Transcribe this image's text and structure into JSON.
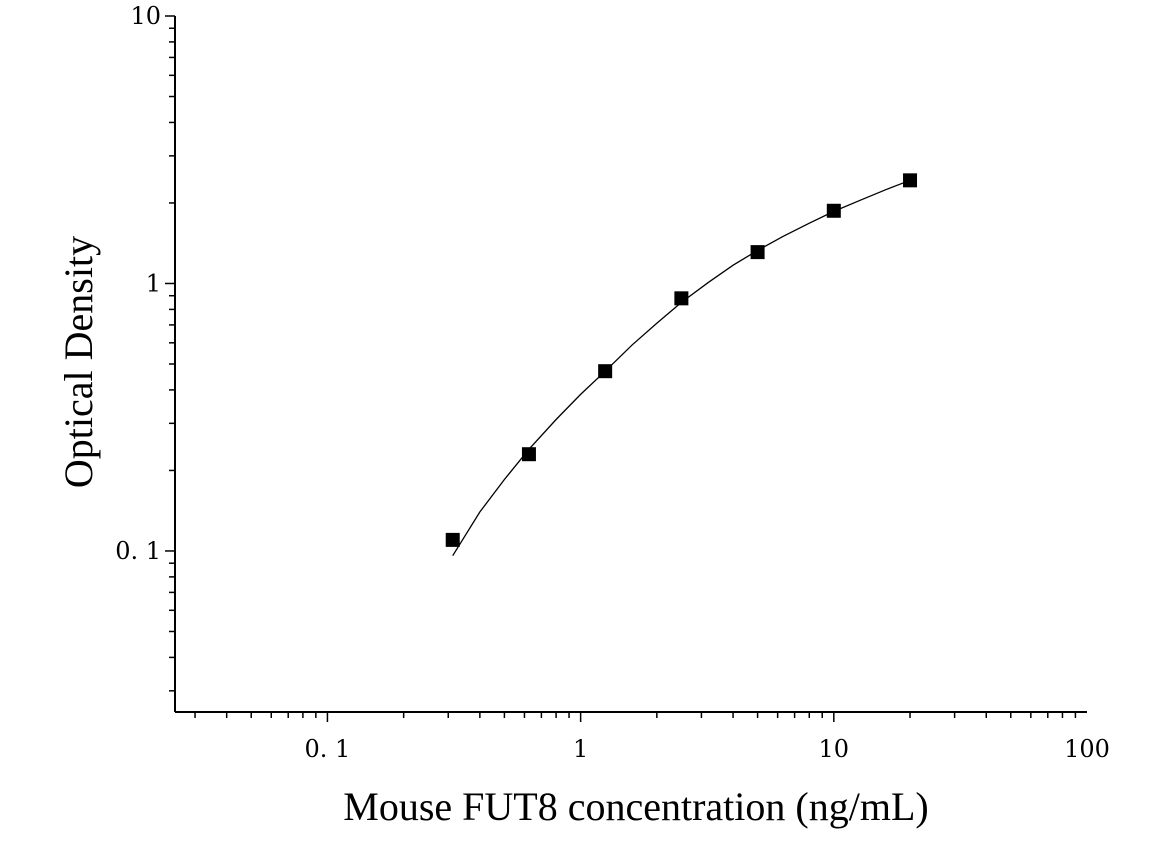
{
  "chart_data": {
    "type": "scatter",
    "title": "",
    "xlabel": "Mouse FUT8 concentration (ng/mL)",
    "ylabel": "Optical Density",
    "x_scale": "log",
    "y_scale": "log",
    "xlim": [
      0.025,
      100
    ],
    "ylim": [
      0.025,
      10
    ],
    "x_ticks": [
      {
        "value": 0.1,
        "label": "0. 1"
      },
      {
        "value": 1,
        "label": "1"
      },
      {
        "value": 10,
        "label": "10"
      },
      {
        "value": 100,
        "label": "100"
      }
    ],
    "y_ticks": [
      {
        "value": 0.1,
        "label": "0. 1"
      },
      {
        "value": 1,
        "label": "1"
      },
      {
        "value": 10,
        "label": "10"
      }
    ],
    "grid": false,
    "legend": "none",
    "series": [
      {
        "marker": "square",
        "color": "#000000",
        "x": [
          0.3125,
          0.625,
          1.25,
          2.5,
          5,
          10,
          20
        ],
        "y": [
          0.11,
          0.23,
          0.47,
          0.88,
          1.31,
          1.87,
          2.43
        ]
      }
    ],
    "fit_curve": {
      "color": "#000000",
      "x": [
        0.3125,
        0.4,
        0.5,
        0.625,
        0.8,
        1,
        1.25,
        1.6,
        2,
        2.5,
        3.2,
        4,
        5,
        6.3,
        8,
        10,
        12.6,
        16,
        20
      ],
      "y": [
        0.096,
        0.14,
        0.185,
        0.24,
        0.31,
        0.385,
        0.47,
        0.59,
        0.71,
        0.85,
        1.01,
        1.17,
        1.33,
        1.5,
        1.68,
        1.86,
        2.04,
        2.24,
        2.43
      ]
    }
  }
}
